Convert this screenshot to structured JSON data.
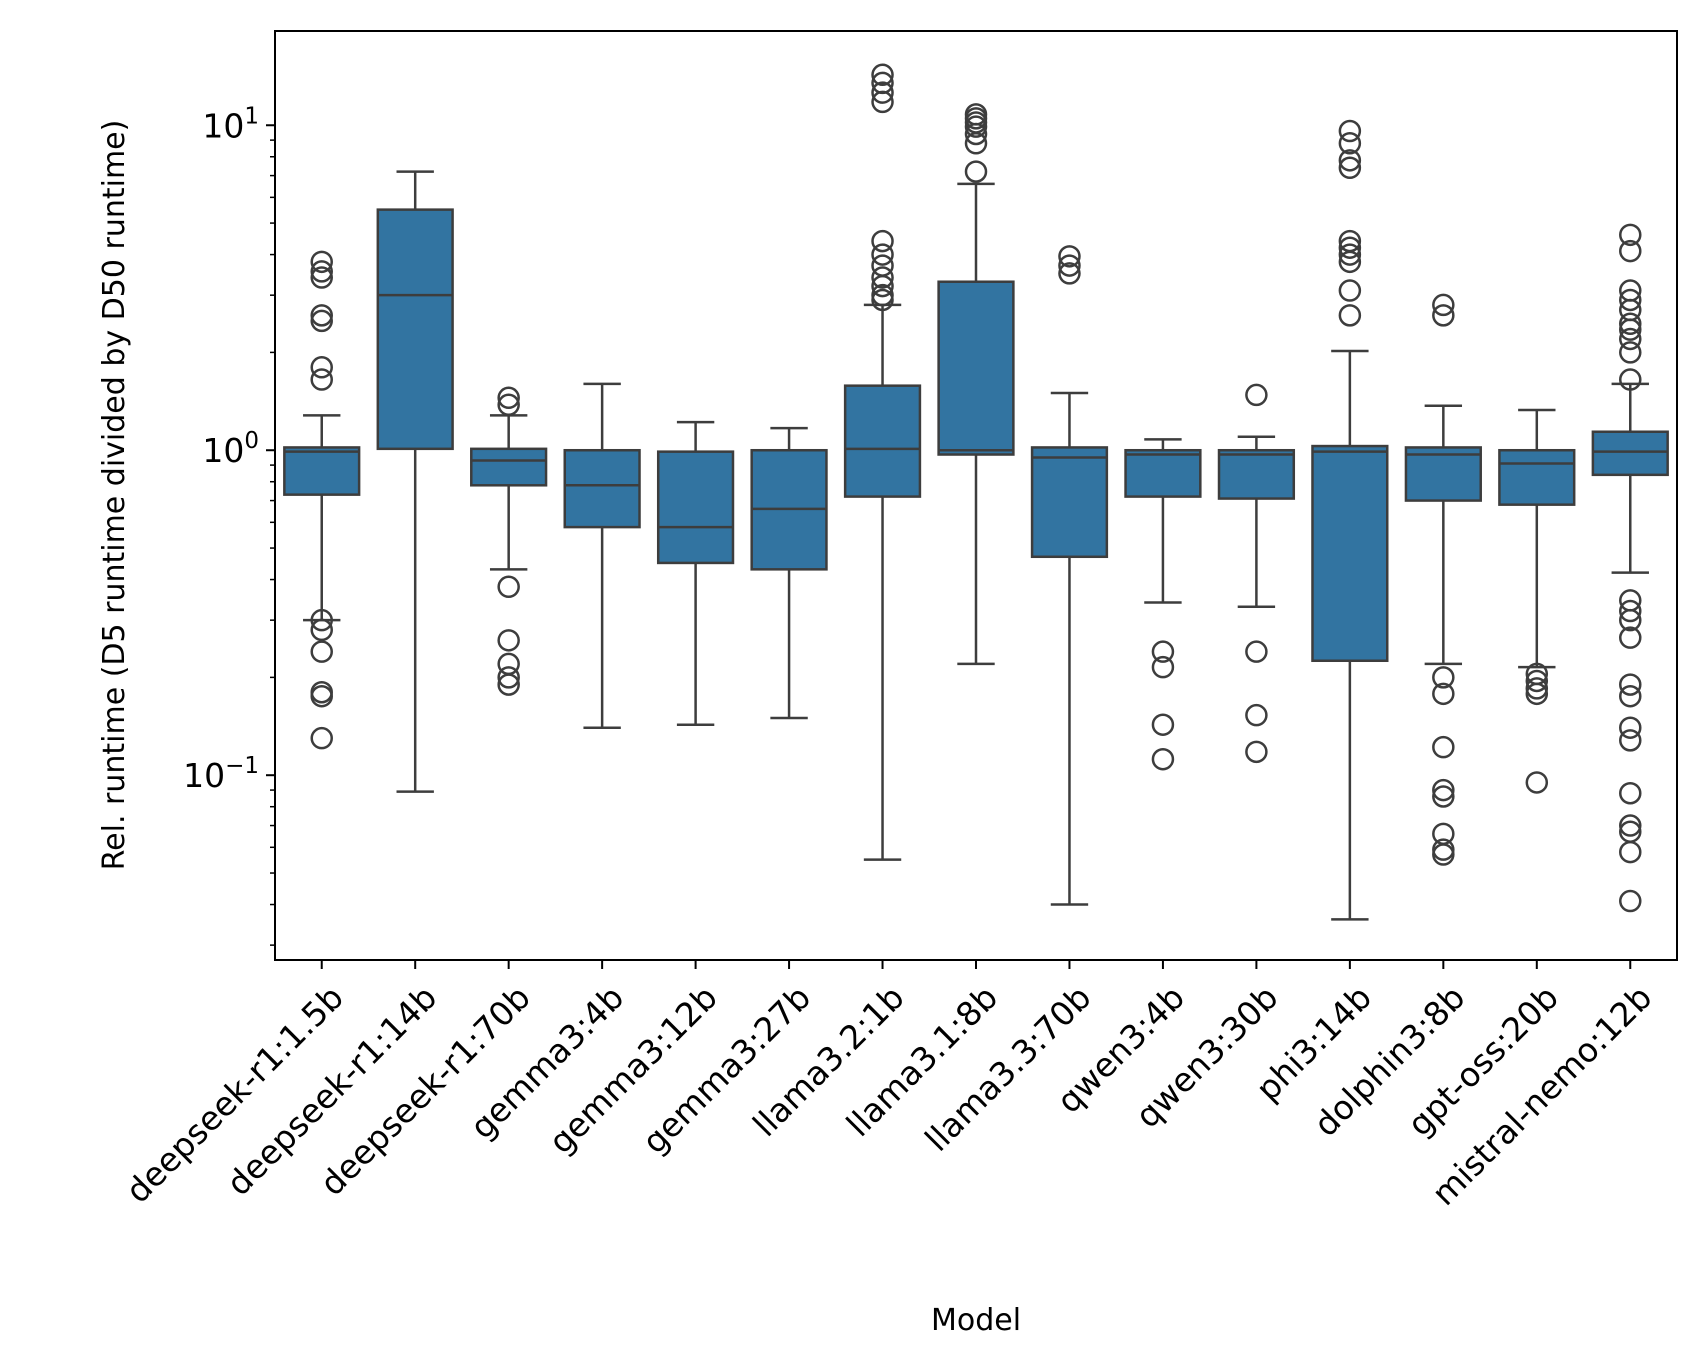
{
  "chart_data": {
    "type": "boxplot",
    "xlabel": "Model",
    "ylabel": "Rel. runtime (D5 runtime divided by D50 runtime)",
    "yscale": "log",
    "ylim": [
      0.027,
      19.5
    ],
    "ytick_values": [
      0.1,
      1,
      10
    ],
    "ytick_labels": [
      {
        "base": "10",
        "exp": "−1"
      },
      {
        "base": "10",
        "exp": "0"
      },
      {
        "base": "10",
        "exp": "1"
      }
    ],
    "box_color": "#3274a1",
    "line_color": "#3d3d3d",
    "grid": false,
    "legend": "none",
    "categories": [
      "deepseek-r1:1.5b",
      "deepseek-r1:14b",
      "deepseek-r1:70b",
      "gemma3:4b",
      "gemma3:12b",
      "gemma3:27b",
      "llama3.2:1b",
      "llama3.1:8b",
      "llama3.3:70b",
      "qwen3:4b",
      "qwen3:30b",
      "phi3:14b",
      "dolphin3:8b",
      "gpt-oss:20b",
      "mistral-nemo:12b"
    ],
    "boxes": [
      {
        "whisker_low": 0.3,
        "q1": 0.73,
        "median": 0.99,
        "q3": 1.02,
        "whisker_high": 1.28,
        "outliers": [
          3.8,
          3.55,
          3.4,
          2.6,
          2.5,
          1.8,
          1.65,
          0.3,
          0.28,
          0.24,
          0.18,
          0.175,
          0.13
        ]
      },
      {
        "whisker_low": 0.089,
        "q1": 1.01,
        "median": 3.0,
        "q3": 5.5,
        "whisker_high": 7.2,
        "outliers": []
      },
      {
        "whisker_low": 0.43,
        "q1": 0.78,
        "median": 0.93,
        "q3": 1.01,
        "whisker_high": 1.28,
        "outliers": [
          1.45,
          1.38,
          0.38,
          0.26,
          0.22,
          0.2,
          0.19
        ]
      },
      {
        "whisker_low": 0.14,
        "q1": 0.58,
        "median": 0.78,
        "q3": 1.0,
        "whisker_high": 1.6,
        "outliers": []
      },
      {
        "whisker_low": 0.143,
        "q1": 0.45,
        "median": 0.58,
        "q3": 0.99,
        "whisker_high": 1.22,
        "outliers": []
      },
      {
        "whisker_low": 0.15,
        "q1": 0.43,
        "median": 0.66,
        "q3": 1.0,
        "whisker_high": 1.17,
        "outliers": []
      },
      {
        "whisker_low": 0.055,
        "q1": 0.72,
        "median": 1.01,
        "q3": 1.58,
        "whisker_high": 2.8,
        "outliers": [
          14.3,
          13.5,
          12.6,
          11.8,
          4.4,
          4.0,
          3.7,
          3.4,
          3.2,
          3.0,
          2.9
        ]
      },
      {
        "whisker_low": 0.22,
        "q1": 0.97,
        "median": 1.0,
        "q3": 3.3,
        "whisker_high": 6.6,
        "outliers": [
          10.8,
          10.5,
          10.2,
          9.9,
          9.4,
          8.8,
          7.2
        ]
      },
      {
        "whisker_low": 0.04,
        "q1": 0.47,
        "median": 0.95,
        "q3": 1.02,
        "whisker_high": 1.5,
        "outliers": [
          3.95,
          3.7,
          3.5
        ]
      },
      {
        "whisker_low": 0.34,
        "q1": 0.72,
        "median": 0.97,
        "q3": 1.0,
        "whisker_high": 1.08,
        "outliers": [
          0.24,
          0.215,
          0.143,
          0.112
        ]
      },
      {
        "whisker_low": 0.33,
        "q1": 0.71,
        "median": 0.97,
        "q3": 1.0,
        "whisker_high": 1.1,
        "outliers": [
          1.48,
          0.24,
          0.153,
          0.118
        ]
      },
      {
        "whisker_low": 0.036,
        "q1": 0.225,
        "median": 0.99,
        "q3": 1.03,
        "whisker_high": 2.02,
        "outliers": [
          9.6,
          8.8,
          7.8,
          7.4,
          4.4,
          4.2,
          4.0,
          3.8,
          3.1,
          2.6
        ]
      },
      {
        "whisker_low": 0.22,
        "q1": 0.7,
        "median": 0.97,
        "q3": 1.02,
        "whisker_high": 1.37,
        "outliers": [
          2.8,
          2.6,
          0.2,
          0.178,
          0.122,
          0.09,
          0.086,
          0.066,
          0.059,
          0.057
        ]
      },
      {
        "whisker_low": 0.215,
        "q1": 0.68,
        "median": 0.91,
        "q3": 1.0,
        "whisker_high": 1.33,
        "outliers": [
          0.205,
          0.195,
          0.185,
          0.178,
          0.095
        ]
      },
      {
        "whisker_low": 0.42,
        "q1": 0.84,
        "median": 0.99,
        "q3": 1.14,
        "whisker_high": 1.6,
        "outliers": [
          4.6,
          4.1,
          3.1,
          2.9,
          2.7,
          2.45,
          2.35,
          2.2,
          2.0,
          1.65,
          0.345,
          0.32,
          0.3,
          0.265,
          0.19,
          0.175,
          0.14,
          0.128,
          0.088,
          0.07,
          0.067,
          0.058,
          0.041
        ]
      }
    ]
  }
}
